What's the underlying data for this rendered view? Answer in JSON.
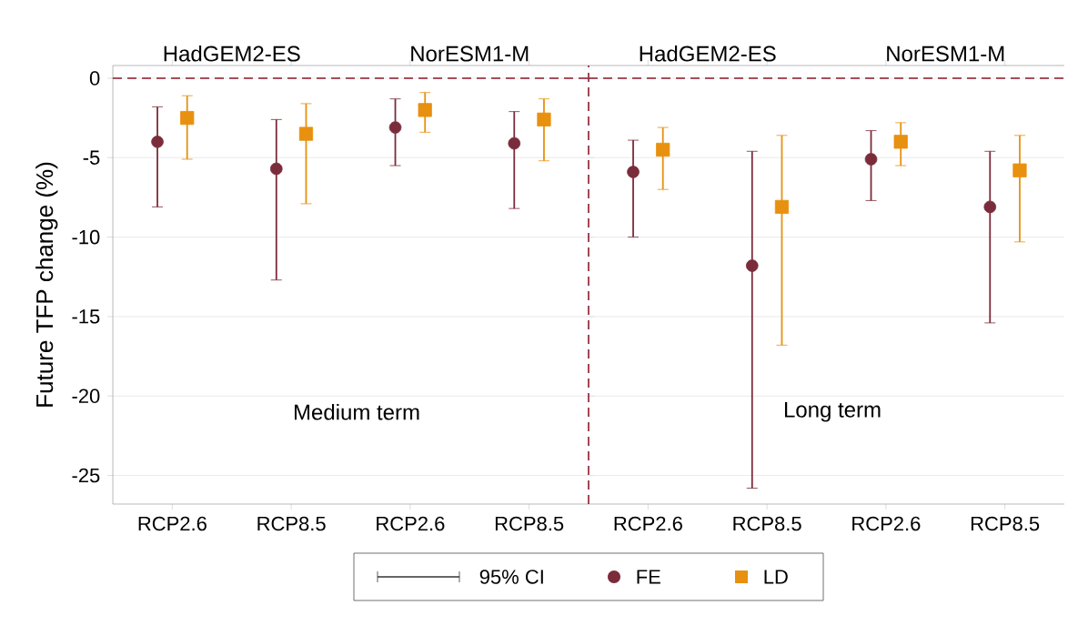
{
  "chart_data": [
    {
      "type": "scatter",
      "ylabel": "Future TFP change (%)",
      "categories": [
        "RCP2.6",
        "RCP8.5",
        "RCP2.6",
        "RCP8.5"
      ],
      "ylim": [
        -26.8,
        0.8
      ],
      "yticks": [
        0,
        -5,
        -10,
        -15,
        -20,
        -25
      ],
      "grid": "y",
      "series": [
        {
          "color": "#7b2c3b",
          "marker": "circle",
          "values": [
            -4.0,
            -5.7,
            -3.1,
            -4.1
          ],
          "errors": [
            [
              -8.1,
              -1.8
            ],
            [
              -12.7,
              -2.6
            ],
            [
              -5.5,
              -1.3
            ],
            [
              -8.2,
              -2.1
            ]
          ]
        },
        {
          "color": "#e8900f",
          "marker": "square",
          "values": [
            -2.5,
            -3.5,
            -2.0,
            -2.6
          ],
          "errors": [
            [
              -5.1,
              -1.1
            ],
            [
              -7.9,
              -1.6
            ],
            [
              -3.4,
              -0.9
            ],
            [
              -5.2,
              -1.3
            ]
          ]
        }
      ],
      "ref_lines": [
        {
          "axis": "y",
          "value": 0,
          "color": "#8b1a2b",
          "line_style": "dashed"
        }
      ],
      "annotations": [
        "HadGEM2-ES",
        "NorESM1-M",
        "Medium term"
      ]
    },
    {
      "type": "scatter",
      "categories": [
        "RCP2.6",
        "RCP8.5",
        "RCP2.6",
        "RCP8.5"
      ],
      "ylim": [
        -26.8,
        0.8
      ],
      "yticks": [
        0,
        -5,
        -10,
        -15,
        -20,
        -25
      ],
      "grid": "y",
      "tick_labels": "x",
      "legend": "bottom",
      "series": [
        {
          "name": "FE",
          "color": "#7b2c3b",
          "marker": "circle",
          "values": [
            -5.9,
            -11.8,
            -5.1,
            -8.1
          ],
          "errors": [
            [
              -10.0,
              -3.9
            ],
            [
              -25.8,
              -4.6
            ],
            [
              -7.7,
              -3.3
            ],
            [
              -15.4,
              -4.6
            ]
          ]
        },
        {
          "name": "LD",
          "color": "#e8900f",
          "marker": "square",
          "values": [
            -4.5,
            -8.1,
            -4.0,
            -5.8
          ],
          "errors": [
            [
              -7.0,
              -3.1
            ],
            [
              -16.8,
              -3.6
            ],
            [
              -5.5,
              -2.8
            ],
            [
              -10.3,
              -3.6
            ]
          ]
        }
      ],
      "ref_lines": [
        {
          "axis": "y",
          "value": 0,
          "color": "#8b1a2b",
          "line_style": "dashed"
        }
      ],
      "annotations": [
        "HadGEM2-ES",
        "NorESM1-M",
        "Long term",
        "95% CI"
      ]
    }
  ]
}
